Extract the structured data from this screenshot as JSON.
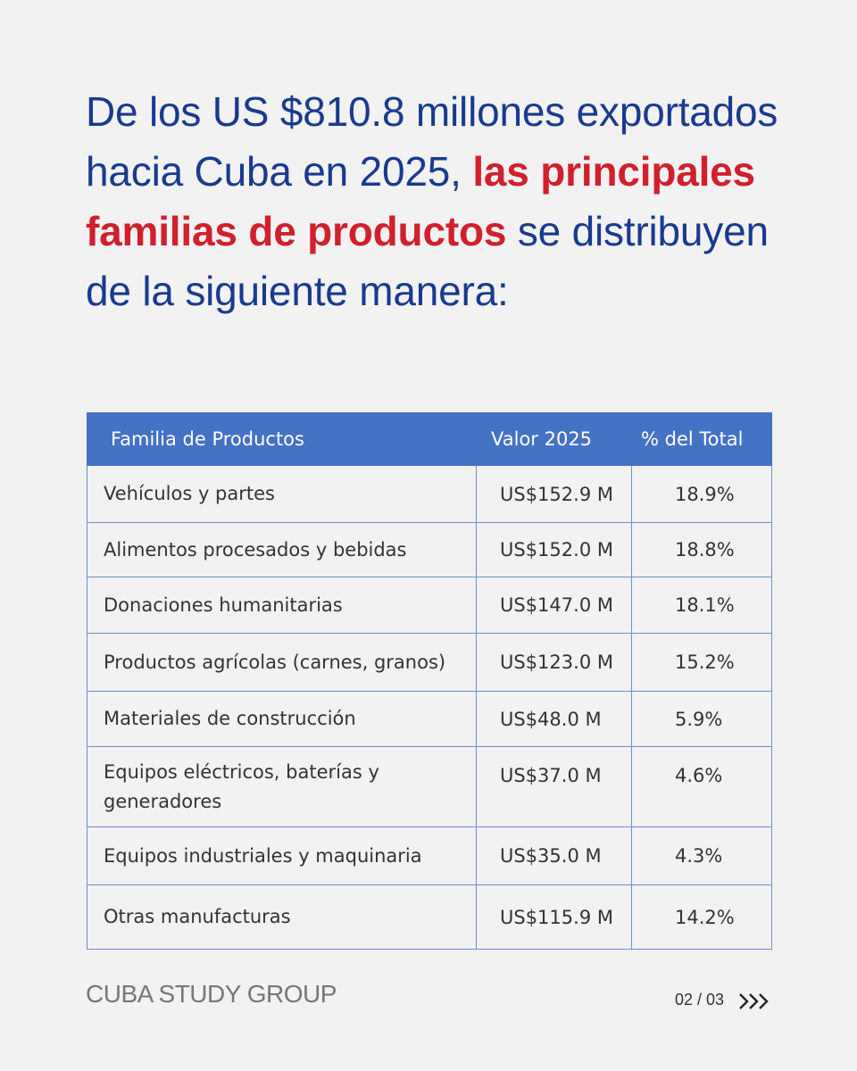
{
  "headline": {
    "part1": "De los US $810.8 millones exportados hacia Cuba en 2025, ",
    "accent": "las principales familias de productos",
    "part2": " se distribuyen de la siguiente manera:"
  },
  "table": {
    "headers": [
      "Familia de Productos",
      "Valor 2025",
      "% del Total"
    ],
    "rows": [
      {
        "name": "Vehículos y partes",
        "value": "US$152.9 M",
        "pct": "18.9%"
      },
      {
        "name": "Alimentos procesados y bebidas",
        "value": "US$152.0 M",
        "pct": "18.8%"
      },
      {
        "name": "Donaciones humanitarias",
        "value": "US$147.0 M",
        "pct": "18.1%"
      },
      {
        "name": "Productos agrícolas (carnes, granos)",
        "value": "US$123.0 M",
        "pct": "15.2%"
      },
      {
        "name": "Materiales de construcción",
        "value": "US$48.0 M",
        "pct": "5.9%"
      },
      {
        "name": "Equipos eléctricos, baterías y generadores",
        "value": "US$37.0 M",
        "pct": "4.6%"
      },
      {
        "name": "Equipos industriales y maquinaria",
        "value": "US$35.0 M",
        "pct": "4.3%"
      },
      {
        "name": "Otras manufacturas",
        "value": "US$115.9 M",
        "pct": "14.2%"
      }
    ]
  },
  "footer": {
    "logo": "CUBA STUDY GROUP",
    "page": "02 / 03",
    "next_icon": "triple-chevron-right-icon"
  }
}
